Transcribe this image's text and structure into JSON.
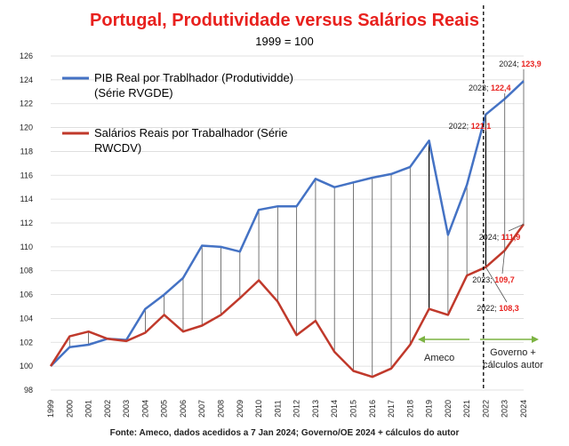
{
  "chart_data": {
    "type": "line",
    "title": "Portugal, Produtividade versus Salários Reais",
    "subtitle": "1999 = 100",
    "source": "Fonte: Ameco, dados acedidos a 7 Jan 2024; Governo/OE 2024 + cálculos do autor",
    "ylim": [
      98,
      126
    ],
    "yticks": [
      98,
      100,
      102,
      104,
      106,
      108,
      110,
      112,
      114,
      116,
      118,
      120,
      122,
      124,
      126
    ],
    "x": [
      "1999",
      "2000",
      "2001",
      "2002",
      "2003",
      "2004",
      "2005",
      "2006",
      "2007",
      "2008",
      "2009",
      "2010",
      "2011",
      "2012",
      "2013",
      "2014",
      "2015",
      "2016",
      "2017",
      "2018",
      "2019",
      "2020",
      "2021",
      "2022",
      "2023",
      "2024"
    ],
    "series": [
      {
        "name": "PIB Real por Trablhador (Produtividde) (Série RVGDE)",
        "legend_lines": [
          "PIB Real por Trablhador (Produtividde)",
          "(Série RVGDE)"
        ],
        "color": "#4472c4",
        "values": [
          100,
          101.6,
          101.8,
          102.3,
          102.2,
          104.8,
          106.0,
          107.4,
          110.1,
          110.0,
          109.6,
          113.1,
          113.4,
          113.4,
          115.7,
          115.0,
          115.4,
          115.8,
          116.1,
          116.7,
          118.9,
          111.0,
          115.2,
          121.1,
          122.4,
          123.9
        ]
      },
      {
        "name": "Salários Reais por Trabalhador (Série RWCDV)",
        "legend_lines": [
          "Salários Reais por Trabalhador (Série",
          "RWCDV)"
        ],
        "color": "#c0392b",
        "values": [
          100,
          102.5,
          102.9,
          102.3,
          102.1,
          102.8,
          104.3,
          102.9,
          103.4,
          104.3,
          105.7,
          107.2,
          105.4,
          102.6,
          103.8,
          101.2,
          99.6,
          99.1,
          99.8,
          101.8,
          104.8,
          104.3,
          107.6,
          108.3,
          109.7,
          111.9
        ]
      }
    ],
    "point_labels": [
      {
        "year": "2022",
        "value": "121,1",
        "prefix": "2022; "
      },
      {
        "year": "2023",
        "value": "122,4",
        "prefix": "2023; "
      },
      {
        "year": "2024",
        "value": "123,9",
        "prefix": "2024; "
      },
      {
        "year": "2022",
        "value": "108,3",
        "prefix": "2022; "
      },
      {
        "year": "2023",
        "value": "109,7",
        "prefix": "2023; "
      },
      {
        "year": "2024",
        "value": "111,9",
        "prefix": "2024; "
      }
    ],
    "annotations": {
      "ameco": "Ameco",
      "governo_line1": "Governo +",
      "governo_line2": "cálculos autor"
    },
    "colors": {
      "title": "#e8211e",
      "label_value": "#e8211e",
      "arrow": "#7cb342",
      "grid": "#d9d9d9",
      "connector": "#555555",
      "projection_divider": "#000000"
    }
  }
}
